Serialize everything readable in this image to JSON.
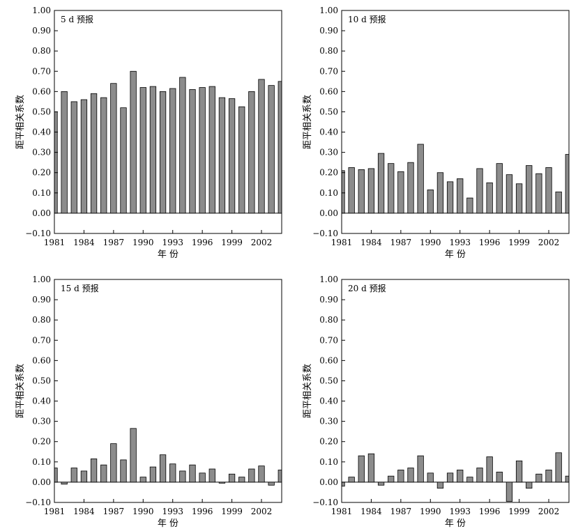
{
  "chart_data": [
    {
      "type": "bar",
      "panel_label": "5 d 预报",
      "xlabel": "年 份",
      "ylabel": "距平相关系数",
      "ylim": [
        -0.1,
        1.0
      ],
      "ytick_labels": [
        "-0.10",
        "0.00",
        "0.10",
        "0.20",
        "0.30",
        "0.40",
        "0.50",
        "0.60",
        "0.70",
        "0.80",
        "0.90",
        "1.00"
      ],
      "xtick_labels": [
        "1981",
        "1984",
        "1987",
        "1990",
        "1993",
        "1996",
        "1999",
        "2002"
      ],
      "categories": [
        1981,
        1982,
        1983,
        1984,
        1985,
        1986,
        1987,
        1988,
        1989,
        1990,
        1991,
        1992,
        1993,
        1994,
        1995,
        1996,
        1997,
        1998,
        1999,
        2000,
        2001,
        2002,
        2003,
        2004
      ],
      "values": [
        0.5,
        0.6,
        0.55,
        0.56,
        0.59,
        0.57,
        0.64,
        0.52,
        0.7,
        0.62,
        0.625,
        0.6,
        0.615,
        0.67,
        0.61,
        0.62,
        0.625,
        0.57,
        0.565,
        0.525,
        0.6,
        0.66,
        0.63,
        0.65
      ]
    },
    {
      "type": "bar",
      "panel_label": "10 d 预报",
      "xlabel": "年 份",
      "ylabel": "距平相关系数",
      "ylim": [
        -0.1,
        1.0
      ],
      "ytick_labels": [
        "-0.10",
        "0.00",
        "0.10",
        "0.20",
        "0.30",
        "0.40",
        "0.50",
        "0.60",
        "0.70",
        "0.80",
        "0.90",
        "1.00"
      ],
      "xtick_labels": [
        "1981",
        "1984",
        "1987",
        "1990",
        "1993",
        "1996",
        "1999",
        "2002"
      ],
      "categories": [
        1981,
        1982,
        1983,
        1984,
        1985,
        1986,
        1987,
        1988,
        1989,
        1990,
        1991,
        1992,
        1993,
        1994,
        1995,
        1996,
        1997,
        1998,
        1999,
        2000,
        2001,
        2002,
        2003,
        2004
      ],
      "values": [
        0.21,
        0.225,
        0.215,
        0.22,
        0.295,
        0.245,
        0.205,
        0.25,
        0.34,
        0.115,
        0.2,
        0.155,
        0.17,
        0.075,
        0.22,
        0.15,
        0.245,
        0.19,
        0.145,
        0.235,
        0.195,
        0.225,
        0.105,
        0.29
      ]
    },
    {
      "type": "bar",
      "panel_label": "15 d 预报",
      "xlabel": "年 份",
      "ylabel": "距平相关系数",
      "ylim": [
        -0.1,
        1.0
      ],
      "ytick_labels": [
        "-0.10",
        "0.00",
        "0.10",
        "0.20",
        "0.30",
        "0.40",
        "0.50",
        "0.60",
        "0.70",
        "0.80",
        "0.90",
        "1.00"
      ],
      "xtick_labels": [
        "1981",
        "1984",
        "1987",
        "1990",
        "1993",
        "1996",
        "1999",
        "2002"
      ],
      "categories": [
        1981,
        1982,
        1983,
        1984,
        1985,
        1986,
        1987,
        1988,
        1989,
        1990,
        1991,
        1992,
        1993,
        1994,
        1995,
        1996,
        1997,
        1998,
        1999,
        2000,
        2001,
        2002,
        2003,
        2004
      ],
      "values": [
        0.07,
        -0.01,
        0.07,
        0.055,
        0.115,
        0.085,
        0.19,
        0.11,
        0.265,
        0.025,
        0.075,
        0.135,
        0.09,
        0.055,
        0.085,
        0.045,
        0.065,
        -0.005,
        0.04,
        0.025,
        0.065,
        0.08,
        -0.015,
        0.06
      ]
    },
    {
      "type": "bar",
      "panel_label": "20 d 预报",
      "xlabel": "年 份",
      "ylabel": "距平相关系数",
      "ylim": [
        -0.1,
        1.0
      ],
      "ytick_labels": [
        "-0.10",
        "0.00",
        "0.10",
        "0.20",
        "0.30",
        "0.40",
        "0.50",
        "0.60",
        "0.70",
        "0.80",
        "0.90",
        "1.00"
      ],
      "xtick_labels": [
        "1981",
        "1984",
        "1987",
        "1990",
        "1993",
        "1996",
        "1999",
        "2002"
      ],
      "categories": [
        1981,
        1982,
        1983,
        1984,
        1985,
        1986,
        1987,
        1988,
        1989,
        1990,
        1991,
        1992,
        1993,
        1994,
        1995,
        1996,
        1997,
        1998,
        1999,
        2000,
        2001,
        2002,
        2003,
        2004
      ],
      "values": [
        -0.02,
        0.025,
        0.13,
        0.14,
        -0.015,
        0.03,
        0.06,
        0.07,
        0.13,
        0.045,
        -0.03,
        0.045,
        0.06,
        0.025,
        0.07,
        0.125,
        0.05,
        -0.095,
        0.105,
        -0.03,
        0.04,
        0.06,
        0.145,
        0.03
      ]
    }
  ]
}
